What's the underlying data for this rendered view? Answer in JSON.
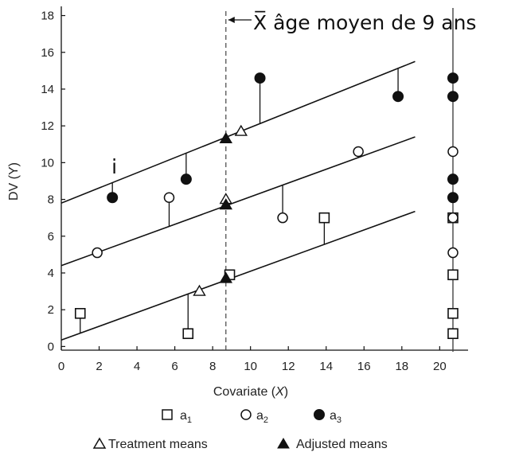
{
  "chart_data": {
    "type": "scatter",
    "xlabel_main": "Covariate (",
    "xlabel_var": "X",
    "xlabel_close": ")",
    "ylabel": "DV (Y)",
    "xlim": [
      0,
      21.5
    ],
    "ylim": [
      -0.2,
      18.5
    ],
    "x_ticks": [
      0,
      2,
      4,
      6,
      8,
      10,
      12,
      14,
      16,
      18,
      20
    ],
    "y_ticks": [
      0,
      2,
      4,
      6,
      8,
      10,
      12,
      14,
      16,
      18
    ],
    "grid": false,
    "mean_line": {
      "x": 8.7,
      "label": "X̅ âge moyen de 9 ans"
    },
    "marginal_x": 20.7,
    "annotation": {
      "text": "i",
      "x": 2.8,
      "y": 9.4
    },
    "series": [
      {
        "name": "a1",
        "marker": "square",
        "line": {
          "x0": 0,
          "y0": 0.35,
          "x1": 18.7,
          "y1": 7.35
        },
        "points": [
          {
            "x": 1.0,
            "y": 1.8
          },
          {
            "x": 6.7,
            "y": 0.7
          },
          {
            "x": 8.9,
            "y": 3.9
          },
          {
            "x": 13.9,
            "y": 7.0
          }
        ],
        "marginal": [
          1.8,
          0.7,
          3.9,
          7.0
        ]
      },
      {
        "name": "a2",
        "marker": "circle",
        "line": {
          "x0": 0,
          "y0": 4.4,
          "x1": 18.7,
          "y1": 11.4
        },
        "points": [
          {
            "x": 1.9,
            "y": 5.1
          },
          {
            "x": 5.7,
            "y": 8.1
          },
          {
            "x": 11.7,
            "y": 7.0
          },
          {
            "x": 15.7,
            "y": 10.6
          }
        ],
        "marginal": [
          5.1,
          8.1,
          7.0,
          10.6
        ]
      },
      {
        "name": "a3",
        "marker": "filled-circle",
        "line": {
          "x0": 0,
          "y0": 7.8,
          "x1": 18.7,
          "y1": 15.5
        },
        "points": [
          {
            "x": 2.7,
            "y": 8.1
          },
          {
            "x": 6.6,
            "y": 9.1
          },
          {
            "x": 10.5,
            "y": 14.6
          },
          {
            "x": 17.8,
            "y": 13.6
          }
        ],
        "marginal": [
          8.1,
          9.1,
          14.6,
          13.6
        ]
      }
    ],
    "treatment_means": [
      {
        "x": 7.3,
        "y": 3.0
      },
      {
        "x": 8.7,
        "y": 8.0
      },
      {
        "x": 9.5,
        "y": 11.7
      }
    ],
    "adjusted_means": [
      {
        "x": 8.7,
        "y": 3.7
      },
      {
        "x": 8.7,
        "y": 7.7
      },
      {
        "x": 8.7,
        "y": 11.3
      }
    ]
  },
  "legend": {
    "a1_letter": "a",
    "a1_sub": "1",
    "a2_letter": "a",
    "a2_sub": "2",
    "a3_letter": "a",
    "a3_sub": "3",
    "treatment_label": "Treatment means",
    "adjusted_label": "Adjusted means"
  }
}
